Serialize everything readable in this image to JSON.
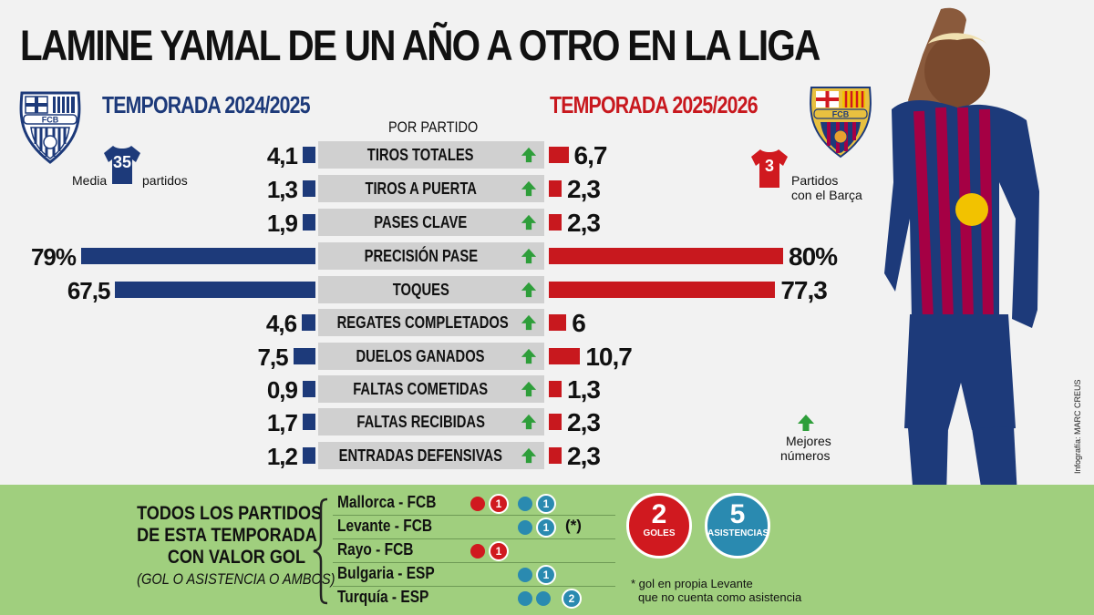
{
  "title": "LAMINE YAMAL DE UN AÑO A OTRO EN LA LIGA",
  "season_left": "TEMPORADA 2024/2025",
  "season_right": "TEMPORADA 2025/2026",
  "per_match_label": "POR PARTIDO",
  "left_jersey": {
    "number": "35",
    "label_before": "Media",
    "label_after": "partidos"
  },
  "right_jersey": {
    "number": "3",
    "label": [
      "Partidos",
      "con el Barça"
    ]
  },
  "crest_text": "FCB",
  "legend": {
    "label": [
      "Mejores",
      "números"
    ]
  },
  "colors": {
    "season_2024": "#1d3a7a",
    "season_2025": "#c8181e",
    "arrow": "#2e9e3a",
    "panel": "#a0cf7e",
    "goles": "#d0191f",
    "asistencias": "#2a8ab0"
  },
  "chart_data": {
    "type": "bar",
    "title": "LAMINE YAMAL DE UN AÑO A OTRO EN LA LIGA",
    "categories": [
      "TIROS TOTALES",
      "TIROS A PUERTA",
      "PASES CLAVE",
      "PRECISIÓN PASE",
      "TOQUES",
      "REGATES COMPLETADOS",
      "DUELOS GANADOS",
      "FALTAS COMETIDAS",
      "FALTAS RECIBIDAS",
      "ENTRADAS DEFENSIVAS"
    ],
    "series": [
      {
        "name": "TEMPORADA 2024/2025",
        "values": [
          4.1,
          1.3,
          1.9,
          79,
          67.5,
          4.6,
          7.5,
          0.9,
          1.7,
          1.2
        ],
        "labels": [
          "4,1",
          "1,3",
          "1,9",
          "79%",
          "67,5",
          "4,6",
          "7,5",
          "0,9",
          "1,7",
          "1,2"
        ]
      },
      {
        "name": "TEMPORADA 2025/2026",
        "values": [
          6.7,
          2.3,
          2.3,
          80,
          77.3,
          6,
          10.7,
          1.3,
          2.3,
          2.3
        ],
        "labels": [
          "6,7",
          "2,3",
          "2,3",
          "80%",
          "77,3",
          "6",
          "10,7",
          "1,3",
          "2,3",
          "2,3"
        ]
      }
    ]
  },
  "panel": {
    "lines": [
      "TODOS LOS PARTIDOS",
      "DE ESTA TEMPORADA",
      "CON VALOR GOL"
    ],
    "sub": "(GOL O ASISTENCIA O AMBOS)",
    "matches": [
      {
        "label": "Mallorca - FCB",
        "red": [
          "1"
        ],
        "blue": [
          "1"
        ],
        "note": ""
      },
      {
        "label": "Levante - FCB",
        "red": [],
        "blue": [
          "1"
        ],
        "note": "(*)"
      },
      {
        "label": "Rayo - FCB",
        "red": [
          "1"
        ],
        "blue": [],
        "note": ""
      },
      {
        "label": "Bulgaria - ESP",
        "red": [],
        "blue": [
          "1"
        ],
        "note": ""
      },
      {
        "label": "Turquía - ESP",
        "red": [],
        "blue": [
          "",
          "2"
        ],
        "note": ""
      }
    ],
    "goals": {
      "value": "2",
      "label": "GOLES"
    },
    "assists": {
      "value": "5",
      "label": "ASISTENCIAS"
    },
    "note": [
      "* gol en propia Levante",
      "que no cuenta como asistencia"
    ]
  },
  "credit": "Infografía: MARC CREUS"
}
